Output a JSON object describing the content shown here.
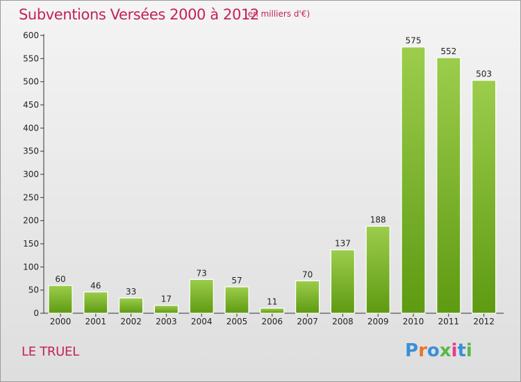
{
  "header": {
    "title": "Subventions Versées 2000 à 2012",
    "unit": "(en milliers d'€)"
  },
  "footer": {
    "commune": "LE TRUEL",
    "logo_text": "Proxiti",
    "logo_colors": [
      "#3a8fd8",
      "#e8742a",
      "#3a8fd8",
      "#58b84a",
      "#e83a8a",
      "#3a8fd8",
      "#58b84a"
    ]
  },
  "colors": {
    "title": "#c4205c",
    "bar_top": "#9ccd4c",
    "bar_bottom": "#5e9a12",
    "axis": "#333333",
    "grid": "#cfcfcf"
  },
  "chart_data": {
    "type": "bar",
    "title": "Subventions Versées 2000 à 2012",
    "subtitle": "(en milliers d'€)",
    "xlabel": "",
    "ylabel": "",
    "categories": [
      "2000",
      "2001",
      "2002",
      "2003",
      "2004",
      "2005",
      "2006",
      "2007",
      "2008",
      "2009",
      "2010",
      "2011",
      "2012"
    ],
    "values": [
      60,
      46,
      33,
      17,
      73,
      57,
      11,
      70,
      137,
      188,
      575,
      552,
      503
    ],
    "ylim": [
      0,
      600
    ],
    "yticks": [
      0,
      50,
      100,
      150,
      200,
      250,
      300,
      350,
      400,
      450,
      500,
      550,
      600
    ],
    "grid": false,
    "legend": "none",
    "data_labels": true
  }
}
